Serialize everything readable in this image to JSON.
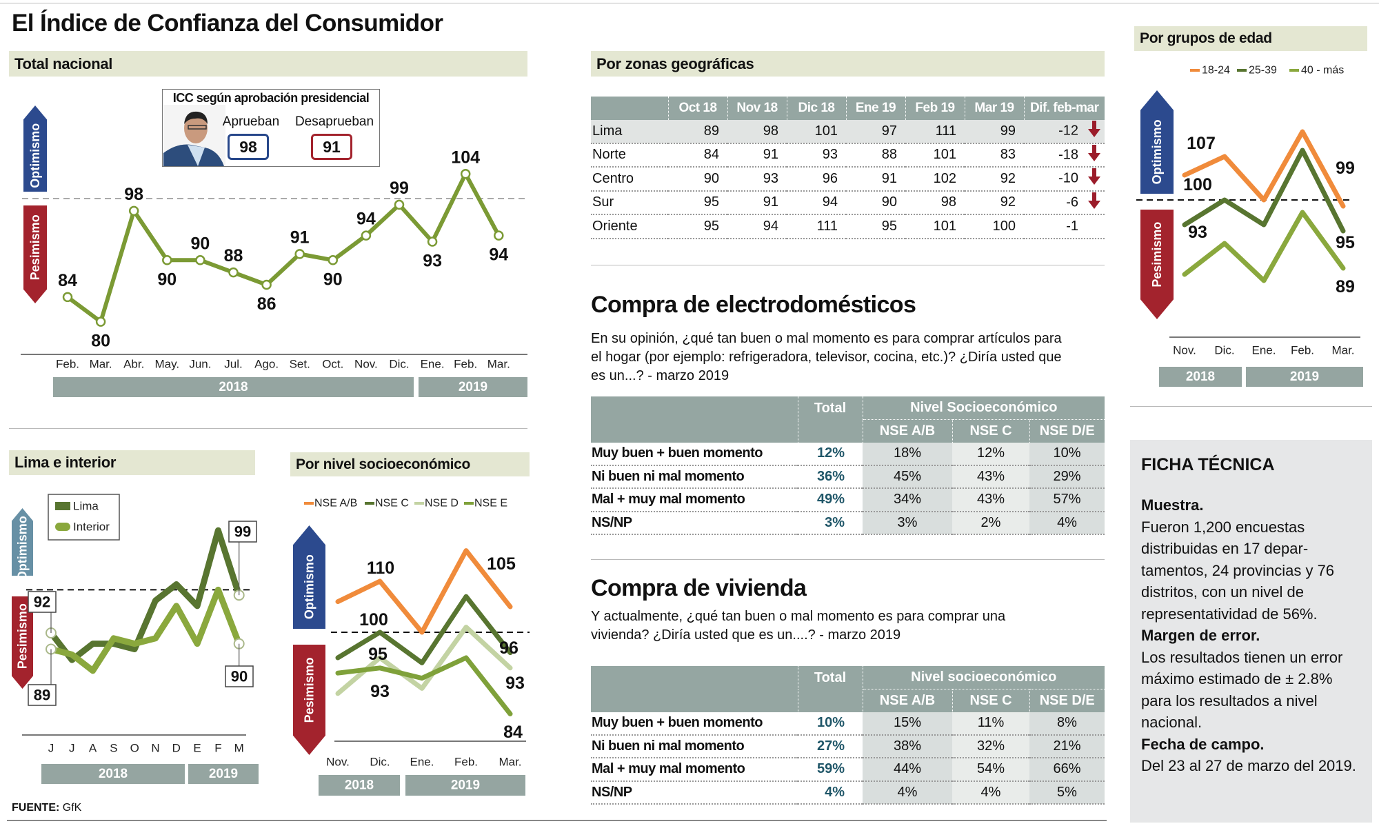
{
  "title": "El Índice de Confianza del Consumidor",
  "sections": {
    "total": "Total nacional",
    "lima": "Lima e interior",
    "nse": "Por nivel socioeconómico",
    "zonas": "Por zonas geográficas",
    "edad": "Por grupos de edad"
  },
  "zone_labels": {
    "optimismo": "Optimismo",
    "pesimismo": "Pesimismo"
  },
  "icc_box": {
    "title": "ICC según aprobación presidencial",
    "aprueban_label": "Aprueban",
    "aprueban_value": "98",
    "desaprueban_label": "Desaprueban",
    "desaprueban_value": "91",
    "colors": {
      "aprueban": "#27478a",
      "desaprueban": "#a3232d"
    }
  },
  "chart_data": [
    {
      "type": "line",
      "title": "Total nacional",
      "categories": [
        "Feb.",
        "Mar.",
        "Abr.",
        "May.",
        "Jun.",
        "Jul.",
        "Ago.",
        "Set.",
        "Oct.",
        "Nov.",
        "Dic.",
        "Ene.",
        "Feb.",
        "Mar."
      ],
      "years": [
        "2018",
        "2019"
      ],
      "reference_value": 100,
      "series": [
        {
          "values": [
            84,
            80,
            98,
            90,
            90,
            88,
            86,
            91,
            90,
            94,
            99,
            93,
            104,
            94
          ],
          "color": "#7b9a34"
        }
      ],
      "labels": [
        "84",
        "80",
        "98",
        "90",
        "90",
        "88",
        "86",
        "91",
        "90",
        "94",
        "99",
        "93",
        "104",
        "94"
      ]
    },
    {
      "type": "line",
      "title": "Lima e interior",
      "categories": [
        "J",
        "J",
        "A",
        "S",
        "O",
        "N",
        "D",
        "E",
        "F",
        "M"
      ],
      "years": [
        "2018",
        "2019"
      ],
      "reference_value": 100,
      "series": [
        {
          "name": "Lima",
          "values": [
            92,
            87,
            90,
            90,
            89,
            98,
            101,
            97,
            111,
            99
          ],
          "color": "#587530"
        },
        {
          "name": "Interior",
          "values": [
            89,
            88,
            85,
            91,
            90,
            91,
            97,
            90,
            100,
            90
          ],
          "color": "#8aa83d"
        }
      ],
      "labels": [
        "92",
        "89",
        "99",
        "90"
      ]
    },
    {
      "type": "line",
      "title": "Por nivel socioeconómico",
      "categories": [
        "Nov.",
        "Dic.",
        "Ene.",
        "Feb.",
        "Mar."
      ],
      "years": [
        "2018",
        "2019"
      ],
      "reference_value": 100,
      "series": [
        {
          "name": "NSE A/B",
          "values": [
            106,
            110,
            100,
            116,
            105
          ],
          "color": "#f08b3b"
        },
        {
          "name": "NSE C",
          "values": [
            95,
            100,
            94,
            107,
            96
          ],
          "color": "#587530"
        },
        {
          "name": "NSE D",
          "values": [
            88,
            95,
            89,
            101,
            93
          ],
          "color": "#c3d3a3"
        },
        {
          "name": "NSE E",
          "values": [
            92,
            93,
            91,
            95,
            84
          ],
          "color": "#7fa13a"
        }
      ],
      "labels": [
        "110",
        "105",
        "100",
        "96",
        "95",
        "93",
        "93",
        "84"
      ]
    },
    {
      "type": "line",
      "title": "Por grupos de edad",
      "categories": [
        "Nov.",
        "Dic.",
        "Ene.",
        "Feb.",
        "Mar."
      ],
      "years": [
        "2018",
        "2019"
      ],
      "reference_value": 100,
      "series": [
        {
          "name": "18-24",
          "values": [
            104,
            107,
            100,
            111,
            99
          ],
          "color": "#f08b3b"
        },
        {
          "name": "25-39",
          "values": [
            96,
            100,
            96,
            108,
            95
          ],
          "color": "#587530"
        },
        {
          "name": "40 - más",
          "values": [
            88,
            93,
            87,
            98,
            89
          ],
          "color": "#8aa83d"
        }
      ],
      "labels": [
        "107",
        "100",
        "93",
        "99",
        "95",
        "89"
      ]
    }
  ],
  "zonas": {
    "columns": [
      "Oct 18",
      "Nov 18",
      "Dic 18",
      "Ene 19",
      "Feb 19",
      "Mar 19",
      "Dif. feb-mar"
    ],
    "rows": [
      {
        "name": "Lima",
        "values": [
          "89",
          "98",
          "101",
          "97",
          "111",
          "99"
        ],
        "diff": "-12",
        "trend": "down"
      },
      {
        "name": "Norte",
        "values": [
          "84",
          "91",
          "93",
          "88",
          "101",
          "83"
        ],
        "diff": "-18",
        "trend": "down"
      },
      {
        "name": "Centro",
        "values": [
          "90",
          "93",
          "96",
          "91",
          "102",
          "92"
        ],
        "diff": "-10",
        "trend": "down"
      },
      {
        "name": "Sur",
        "values": [
          "95",
          "91",
          "94",
          "90",
          "98",
          "92"
        ],
        "diff": "-6",
        "trend": "down"
      },
      {
        "name": "Oriente",
        "values": [
          "95",
          "94",
          "111",
          "95",
          "101",
          "100"
        ],
        "diff": "-1",
        "trend": "none"
      }
    ],
    "trend_color": "#9b1c2a"
  },
  "electro": {
    "title": "Compra de electrodomésticos",
    "question": "En su opinión, ¿qué tan buen o mal momento es para comprar artículos para el hogar (por ejemplo: refrigeradora, televisor, cocina, etc.)? ¿Diría usted que es un...? - marzo 2019",
    "total_header": "Total",
    "group_header": "Nivel Socioeconómico",
    "sub_headers": [
      "NSE A/B",
      "NSE C",
      "NSE D/E"
    ],
    "rows": [
      {
        "label": "Muy buen + buen momento",
        "total": "12%",
        "nse": [
          "18%",
          "12%",
          "10%"
        ]
      },
      {
        "label": "Ni buen ni mal momento",
        "total": "36%",
        "nse": [
          "45%",
          "43%",
          "29%"
        ]
      },
      {
        "label": "Mal + muy mal momento",
        "total": "49%",
        "nse": [
          "34%",
          "43%",
          "57%"
        ]
      },
      {
        "label": "NS/NP",
        "total": "3%",
        "nse": [
          "3%",
          "2%",
          "4%"
        ]
      }
    ]
  },
  "vivienda": {
    "title": "Compra de vivienda",
    "question": "Y actualmente, ¿qué tan buen o mal momento es para comprar una vivienda? ¿Diría usted que es un....? - marzo 2019",
    "total_header": "Total",
    "group_header": "Nivel socioeconómico",
    "sub_headers": [
      "NSE A/B",
      "NSE C",
      "NSE D/E"
    ],
    "rows": [
      {
        "label": "Muy buen + buen momento",
        "total": "10%",
        "nse": [
          "15%",
          "11%",
          "8%"
        ]
      },
      {
        "label": "Ni buen ni mal momento",
        "total": "27%",
        "nse": [
          "38%",
          "32%",
          "21%"
        ]
      },
      {
        "label": "Mal + muy mal momento",
        "total": "59%",
        "nse": [
          "44%",
          "54%",
          "66%"
        ]
      },
      {
        "label": "NS/NP",
        "total": "4%",
        "nse": [
          "4%",
          "4%",
          "5%"
        ]
      }
    ]
  },
  "ficha": {
    "title": "FICHA TÉCNICA",
    "items": [
      {
        "heading": "Muestra.",
        "text": "Fueron 1,200 encuestas distribuidas en 17 depar-tamentos, 24 provincias y 76 distritos, con un nivel de representatividad de 56%."
      },
      {
        "heading": "Margen de error.",
        "text": "Los resultados tienen un error máximo estimado de ± 2.8% para los resultados a nivel nacional."
      },
      {
        "heading": "Fecha de campo.",
        "text": "Del 23 al 27 de marzo del 2019."
      }
    ]
  },
  "footer": {
    "source_label": "FUENTE:",
    "source": "GfK"
  },
  "colors": {
    "optimismo": "#2c4a8e",
    "optimismo_light": "#6790a5",
    "pesimismo": "#a3232d",
    "header_bar": "#e4e7d2",
    "table_header": "#95a6a2",
    "year_bar": "#95a5a1"
  }
}
